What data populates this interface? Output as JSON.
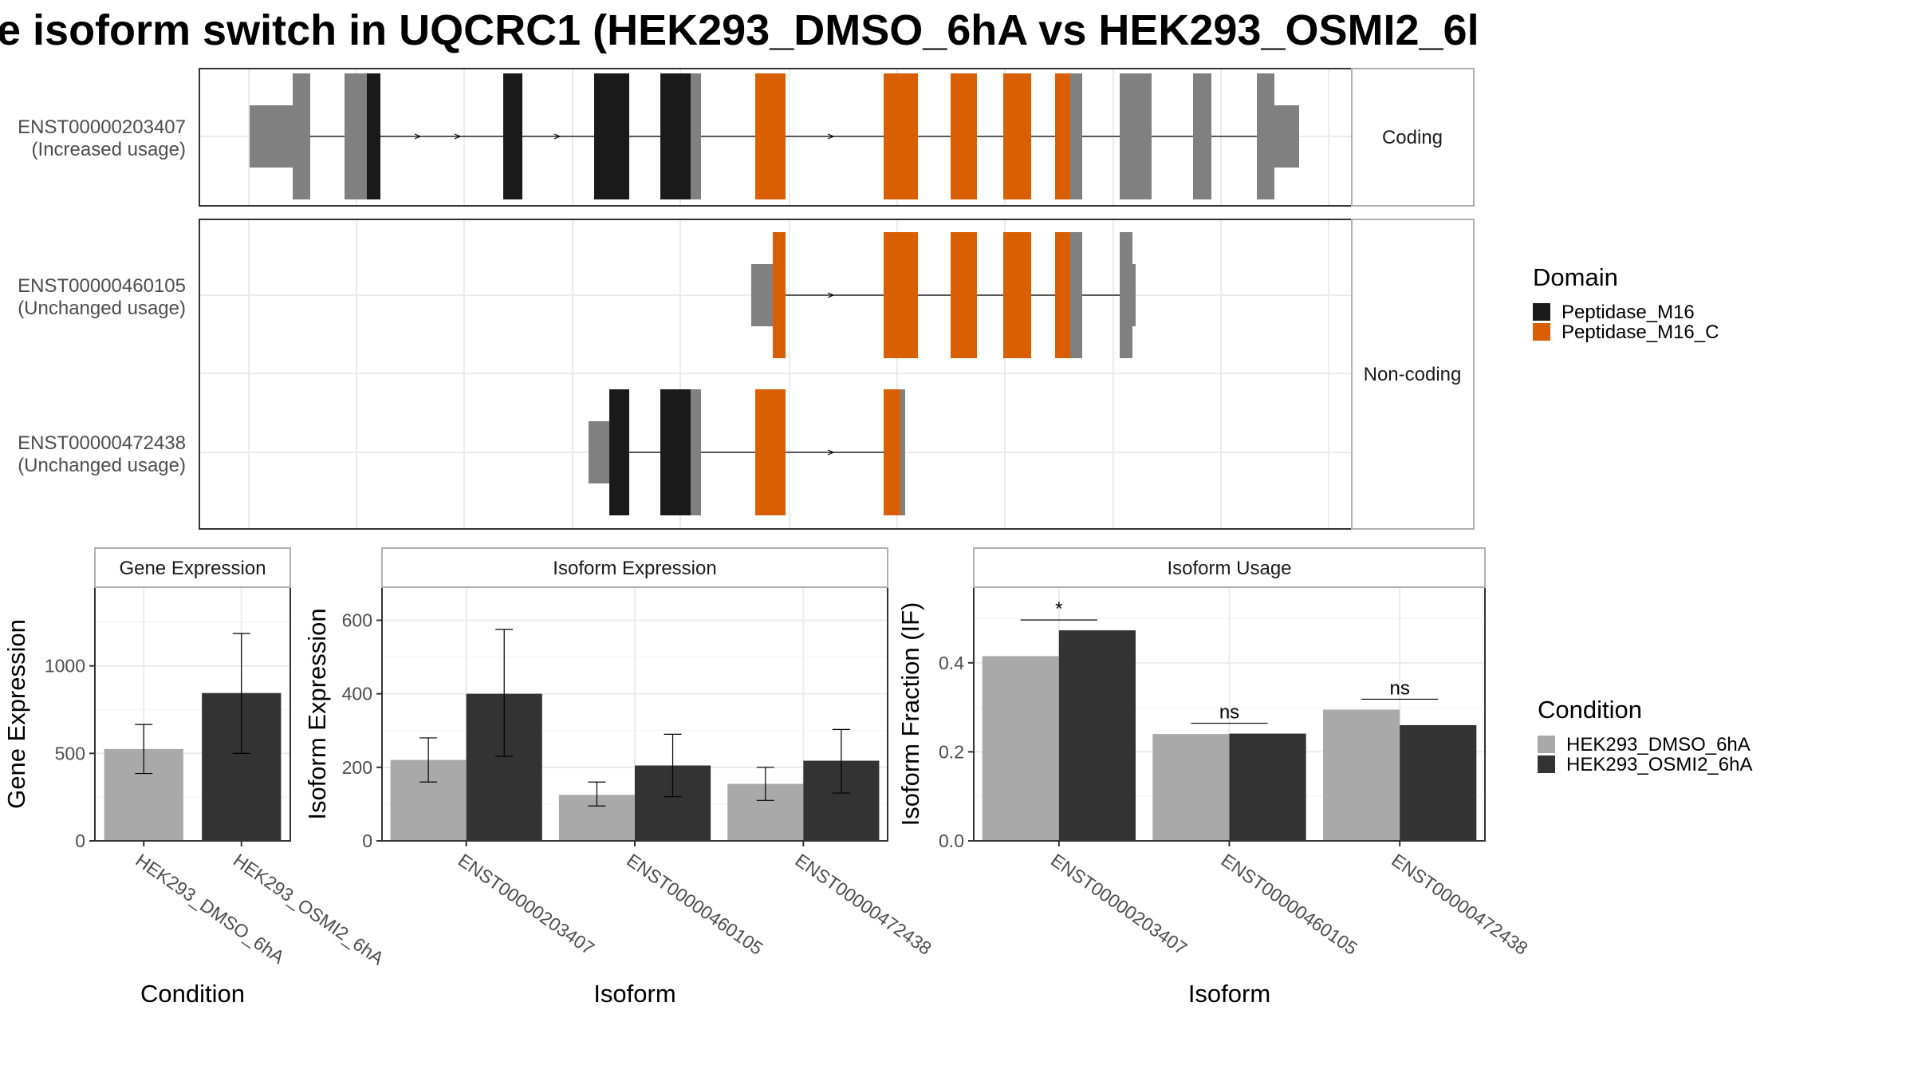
{
  "title": "e isoform switch in UQCRC1 (HEK293_DMSO_6hA vs HEK293_OSMI2_6l",
  "colors": {
    "utr_gray": "#808080",
    "peptidase_m16": "#1a1a1a",
    "peptidase_m16_c": "#d95f02",
    "dmso": "#a9a9a9",
    "osmi2": "#333333",
    "grid": "#ebebeb",
    "panel_border": "#333333",
    "strip_border": "#b0b0b0"
  },
  "structure": {
    "strips": [
      "Coding",
      "Non-coding"
    ],
    "domain_legend": {
      "title": "Domain",
      "items": [
        {
          "label": "Peptidase_M16",
          "color_key": "peptidase_m16"
        },
        {
          "label": "Peptidase_M16_C",
          "color_key": "peptidase_m16_c"
        }
      ]
    },
    "transcripts": [
      {
        "id": "ENST00000203407",
        "usage": "(Increased usage)"
      },
      {
        "id": "ENST00000460105",
        "usage": "(Unchanged usage)"
      },
      {
        "id": "ENST00000472438",
        "usage": "(Unchanged usage)"
      }
    ]
  },
  "condition_legend": {
    "title": "Condition",
    "items": [
      {
        "label": "HEK293_DMSO_6hA",
        "color_key": "dmso"
      },
      {
        "label": "HEK293_OSMI2_6hA",
        "color_key": "osmi2"
      }
    ]
  },
  "chart_data": [
    {
      "type": "bar",
      "title": "Gene Expression",
      "xlabel": "Condition",
      "ylabel": "Gene Expression",
      "categories": [
        "HEK293_DMSO_6hA",
        "HEK293_OSMI2_6hA"
      ],
      "values": [
        525,
        845
      ],
      "error_low": [
        385,
        500
      ],
      "error_high": [
        665,
        1185
      ],
      "ylim": [
        0,
        1450
      ],
      "yticks": [
        0,
        500,
        1000
      ],
      "grid": true
    },
    {
      "type": "bar",
      "title": "Isoform Expression",
      "xlabel": "Isoform",
      "ylabel": "Isoform Expression",
      "categories": [
        "ENST00000203407",
        "ENST00000460105",
        "ENST00000472438"
      ],
      "series": [
        {
          "name": "HEK293_DMSO_6hA",
          "values": [
            220,
            125,
            155
          ],
          "error_low": [
            160,
            95,
            110
          ],
          "error_high": [
            280,
            160,
            200
          ]
        },
        {
          "name": "HEK293_OSMI2_6hA",
          "values": [
            400,
            205,
            218
          ],
          "error_low": [
            230,
            120,
            130
          ],
          "error_high": [
            575,
            290,
            303
          ]
        }
      ],
      "ylim": [
        0,
        690
      ],
      "yticks": [
        0,
        200,
        400,
        600
      ],
      "grid": true
    },
    {
      "type": "bar",
      "title": "Isoform Usage",
      "xlabel": "Isoform",
      "ylabel": "Isoform Fraction (IF)",
      "categories": [
        "ENST00000203407",
        "ENST00000460105",
        "ENST00000472438"
      ],
      "series": [
        {
          "name": "HEK293_DMSO_6hA",
          "values": [
            0.415,
            0.24,
            0.295
          ]
        },
        {
          "name": "HEK293_OSMI2_6hA",
          "values": [
            0.473,
            0.241,
            0.26
          ]
        }
      ],
      "significance": [
        "*",
        "ns",
        "ns"
      ],
      "ylim": [
        0,
        0.57
      ],
      "yticks": [
        "0.0",
        "0.2",
        "0.4"
      ],
      "grid": true
    }
  ]
}
